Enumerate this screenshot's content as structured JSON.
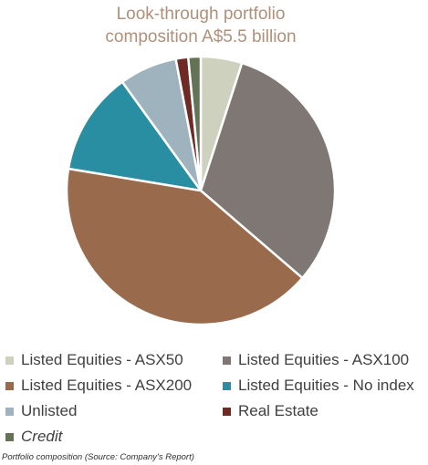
{
  "chart_data": {
    "type": "pie",
    "title_lines": [
      "Look-through portfolio",
      "composition A$5.5 billion"
    ],
    "categories": [
      "Listed Equities - ASX50",
      "Listed Equities - ASX100",
      "Listed Equities - ASX200",
      "Listed Equities - No index",
      "Unlisted",
      "Real Estate",
      "Credit"
    ],
    "values": [
      5.0,
      31.5,
      41.5,
      12.5,
      7.0,
      1.5,
      1.5
    ],
    "unit": "%",
    "colors": [
      "#cdd1bd",
      "#7f7773",
      "#9a6a4d",
      "#2a8ea3",
      "#9fb3be",
      "#6e2a24",
      "#637356"
    ],
    "start_angle_deg": 0,
    "direction": "clockwise",
    "legend_position": "bottom",
    "legend_italic": [
      false,
      false,
      false,
      false,
      false,
      false,
      true
    ]
  },
  "caption": "Portfolio composition (Source: Company's Report)"
}
